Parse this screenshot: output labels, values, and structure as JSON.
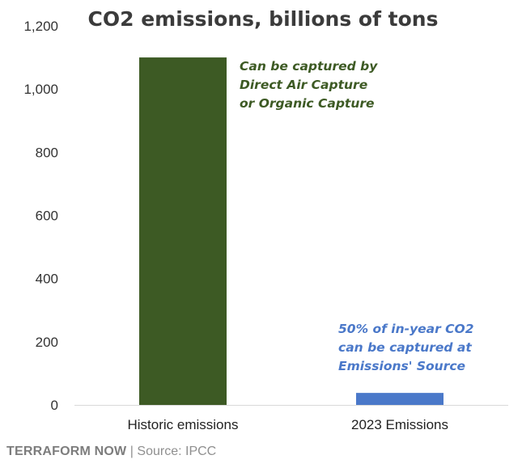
{
  "chart_data": {
    "type": "bar",
    "title": "CO2 emissions, billions of tons",
    "categories": [
      "Historic emissions",
      "2023 Emissions"
    ],
    "values": [
      1100,
      38
    ],
    "colors": [
      "#3d5a24",
      "#4a78c9"
    ],
    "ylim": [
      0,
      1200
    ],
    "yticks": [
      0,
      200,
      400,
      600,
      800,
      1000,
      1200
    ],
    "ytick_labels": [
      "0",
      "200",
      "400",
      "600",
      "800",
      "1,000",
      "1,200"
    ],
    "grid": false,
    "annotations": [
      {
        "lines": [
          "Can be captured by",
          "Direct Air Capture",
          "or Organic Capture"
        ],
        "color": "#3d5a24"
      },
      {
        "lines": [
          "50% of in-year CO2",
          "can be captured at",
          "Emissions' Source"
        ],
        "color": "#4a78c9"
      }
    ]
  },
  "footer": {
    "brand": "TERRAFORM NOW",
    "separator": " | ",
    "source": "Source: IPCC"
  }
}
